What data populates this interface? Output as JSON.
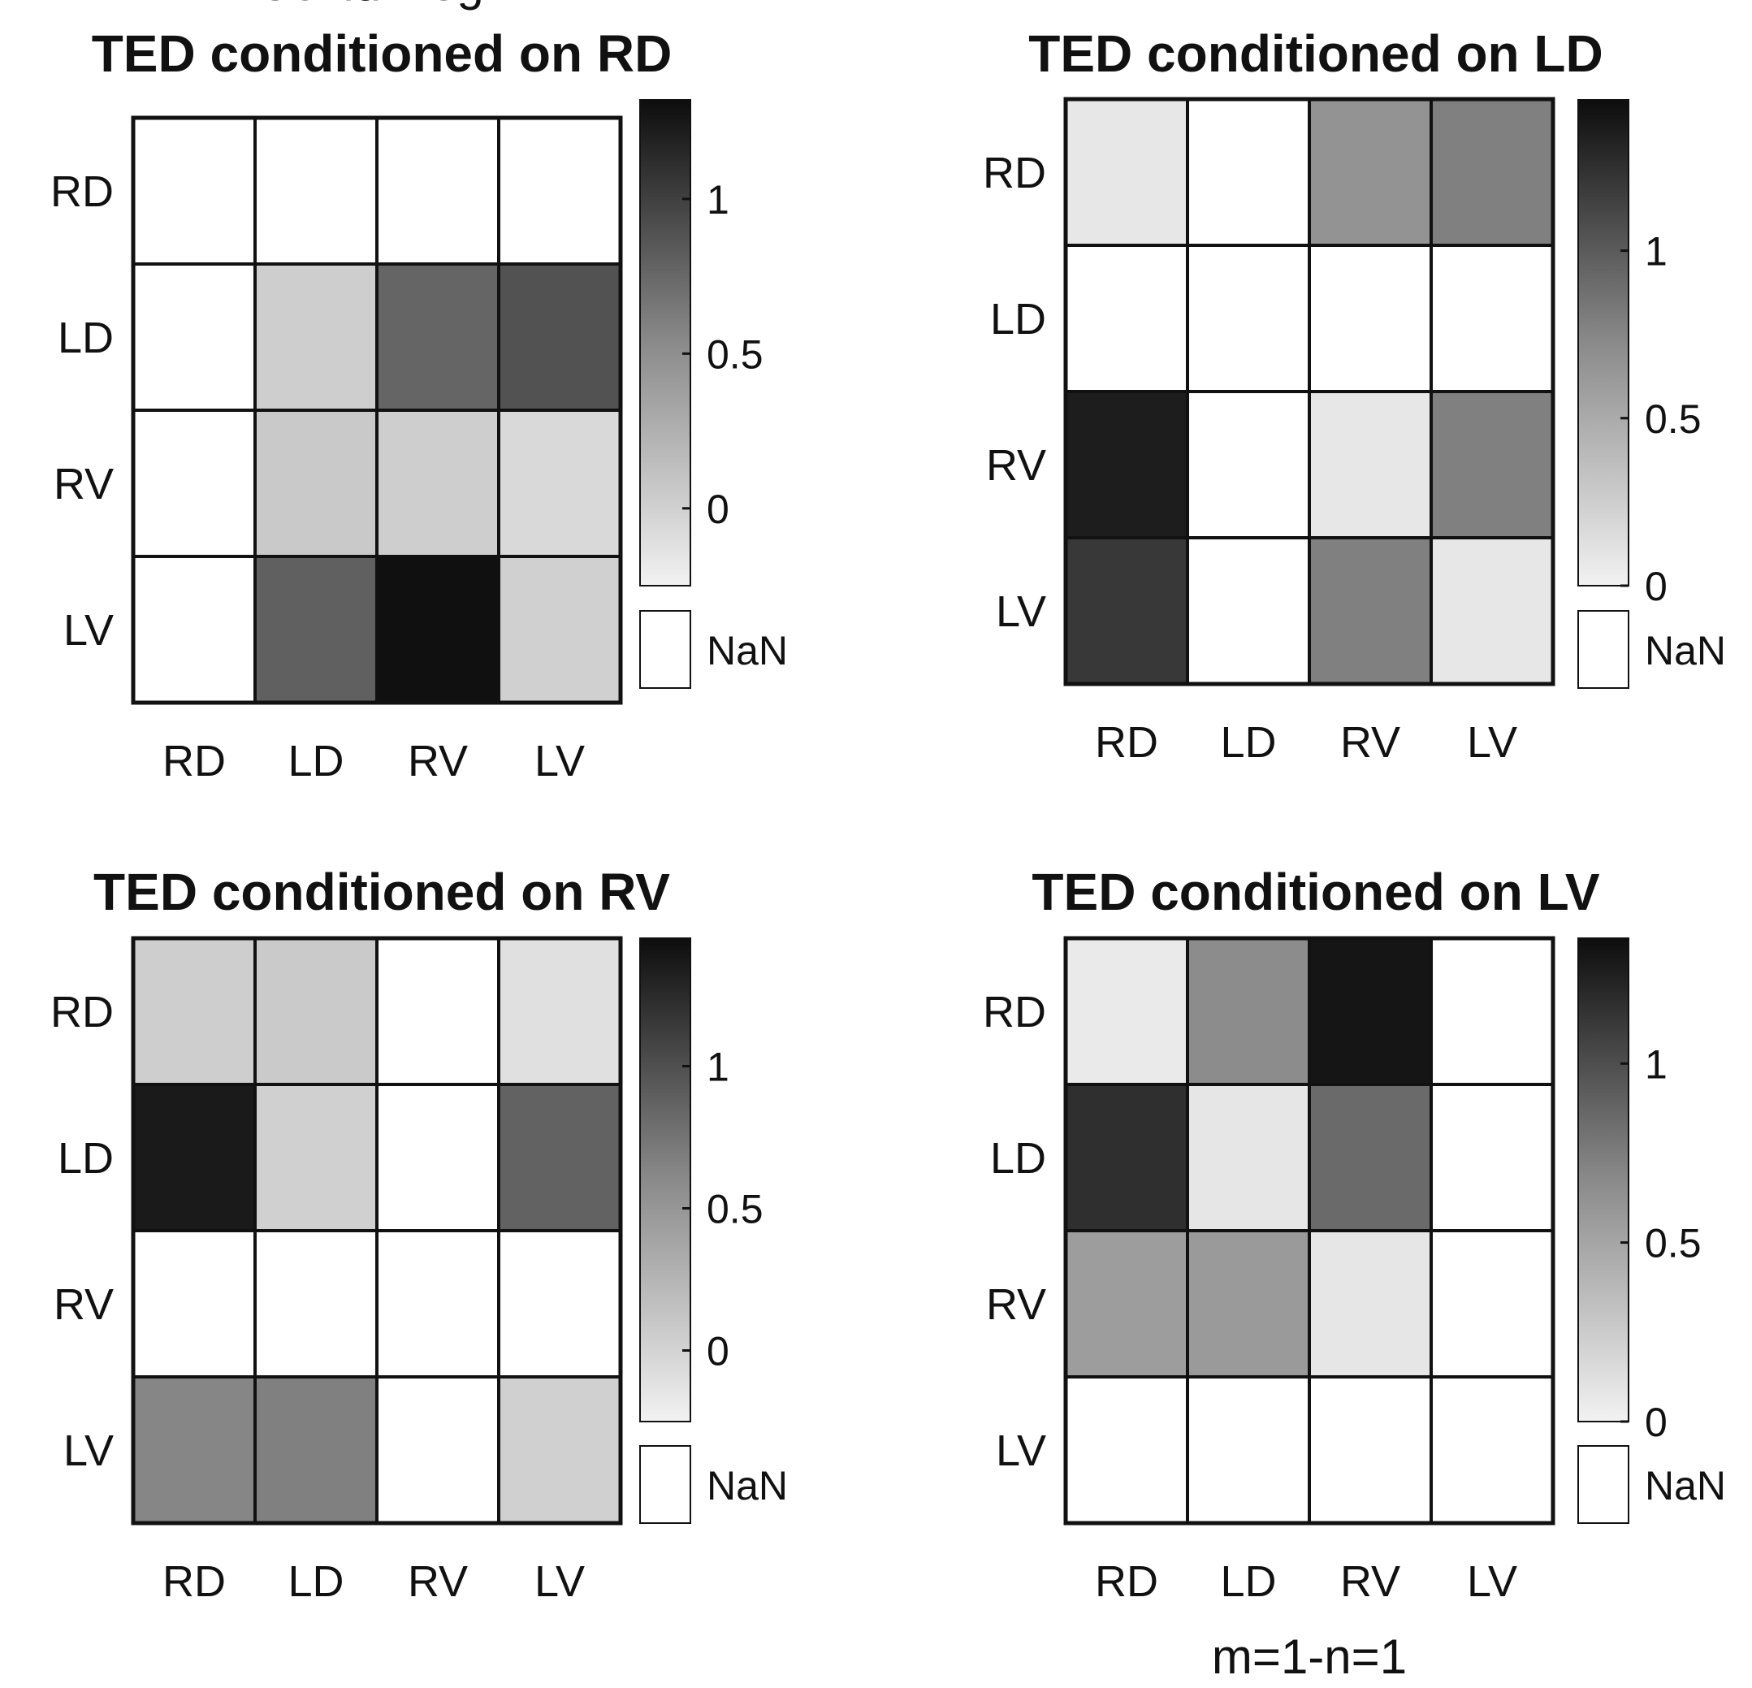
{
  "chart_data": [
    {
      "type": "heatmap",
      "title": "TED conditioned on RD",
      "row_labels": [
        "RD",
        "LD",
        "RV",
        "LV"
      ],
      "col_labels": [
        "RD",
        "LD",
        "RV",
        "LV"
      ],
      "values": [
        [
          null,
          null,
          null,
          null
        ],
        [
          null,
          0.0,
          0.72,
          0.85
        ],
        [
          null,
          0.03,
          0.0,
          -0.08
        ],
        [
          null,
          0.75,
          1.3,
          -0.02
        ]
      ],
      "colorbar": {
        "min": -0.25,
        "max": 1.32,
        "ticks": [
          0,
          0.5,
          1
        ],
        "tick_labels": [
          "0",
          "0.5",
          "1"
        ],
        "nan_label": "NaN"
      },
      "xlabel": "Covid Neg."
    },
    {
      "type": "heatmap",
      "title": "TED conditioned on LD",
      "row_labels": [
        "RD",
        "LD",
        "RV",
        "LV"
      ],
      "col_labels": [
        "RD",
        "LD",
        "RV",
        "LV"
      ],
      "values": [
        [
          0.07,
          null,
          0.6,
          0.72
        ],
        [
          null,
          null,
          null,
          null
        ],
        [
          1.35,
          null,
          0.07,
          0.72
        ],
        [
          1.18,
          null,
          0.72,
          0.07
        ]
      ],
      "colorbar": {
        "min": 0,
        "max": 1.45,
        "ticks": [
          0,
          0.5,
          1
        ],
        "tick_labels": [
          "0",
          "0.5",
          "1"
        ],
        "nan_label": "NaN"
      },
      "xlabel": ""
    },
    {
      "type": "heatmap",
      "title": "TED conditioned on RV",
      "row_labels": [
        "RD",
        "LD",
        "RV",
        "LV"
      ],
      "col_labels": [
        "RD",
        "LD",
        "RV",
        "LV"
      ],
      "values": [
        [
          0.02,
          0.05,
          null,
          -0.12
        ],
        [
          1.35,
          0.0,
          null,
          0.82
        ],
        [
          null,
          null,
          null,
          null
        ],
        [
          0.55,
          0.6,
          null,
          0.0
        ]
      ],
      "colorbar": {
        "min": -0.25,
        "max": 1.45,
        "ticks": [
          0,
          0.5,
          1
        ],
        "tick_labels": [
          "0",
          "0.5",
          "1"
        ],
        "nan_label": "NaN"
      },
      "xlabel": ""
    },
    {
      "type": "heatmap",
      "title": "TED conditioned on LV",
      "row_labels": [
        "RD",
        "LD",
        "RV",
        "LV"
      ],
      "col_labels": [
        "RD",
        "LD",
        "RV",
        "LV"
      ],
      "values": [
        [
          0.05,
          0.6,
          1.3,
          null
        ],
        [
          1.15,
          0.07,
          0.8,
          null
        ],
        [
          0.5,
          0.52,
          0.07,
          null
        ],
        [
          null,
          null,
          null,
          null
        ]
      ],
      "colorbar": {
        "min": 0,
        "max": 1.35,
        "ticks": [
          0,
          0.5,
          1
        ],
        "tick_labels": [
          "0",
          "0.5",
          "1"
        ],
        "nan_label": "NaN"
      },
      "xlabel": "m=1-n=1"
    }
  ]
}
